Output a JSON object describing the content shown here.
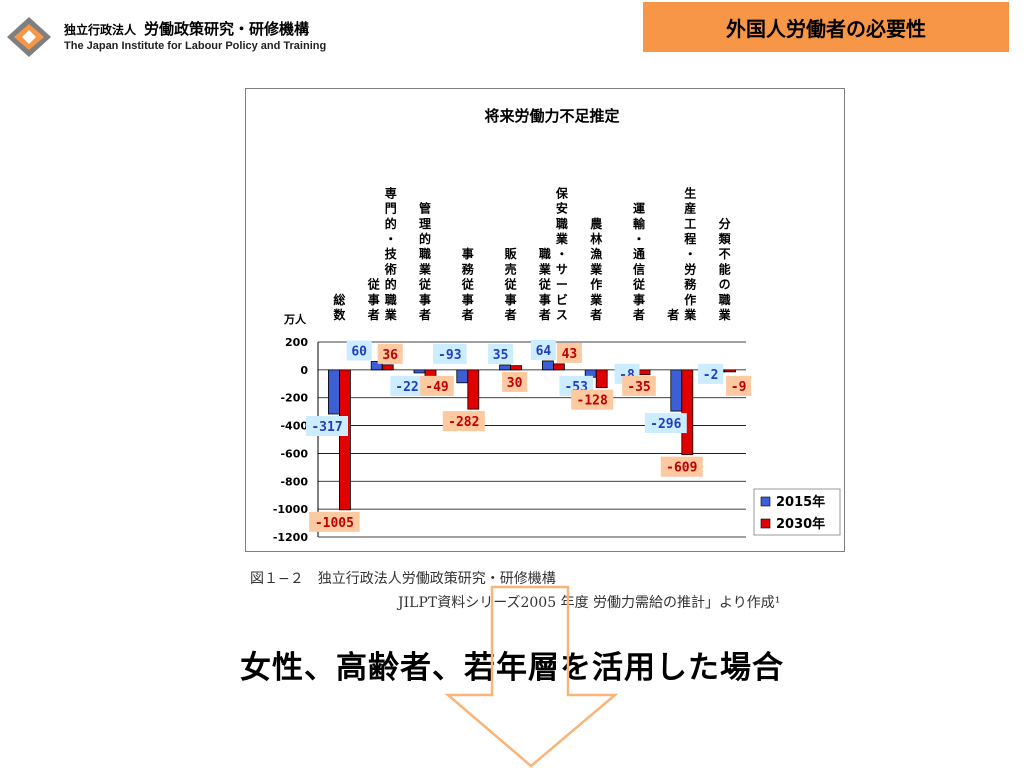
{
  "header": {
    "org_small": "独立行政法人",
    "org_name": "労働政策研究・研修機構",
    "org_en": "The Japan Institute for Labour Policy and Training",
    "slide_title": "外国人労働者の必要性"
  },
  "colors": {
    "title_box": "#f79646",
    "series_2015": "#3c5fd6",
    "series_2030": "#e00000",
    "label_2015_bg": "#ccecff",
    "label_2030_bg": "#fcc9a0",
    "arrow": "#f9b479",
    "logo": "#7f7f7f"
  },
  "chart_data": {
    "type": "bar",
    "title": "将来労働力不足推定",
    "yunit": "万人",
    "ylim": [
      -1200,
      200
    ],
    "yticks": [
      200,
      0,
      -200,
      -400,
      -600,
      -800,
      -1000,
      -1200
    ],
    "grid": true,
    "legend_position": "right-bottom",
    "categories": [
      [
        "総",
        "数"
      ],
      [
        "専",
        "門",
        "的",
        "・",
        "技",
        "術",
        "的",
        "職",
        "業",
        "従",
        "事",
        "者"
      ],
      [
        "管",
        "理",
        "的",
        "職",
        "業",
        "従",
        "事",
        "者"
      ],
      [
        "事",
        "務",
        "従",
        "事",
        "者"
      ],
      [
        "販",
        "売",
        "従",
        "事",
        "者"
      ],
      [
        "保",
        "安",
        "職",
        "業",
        "・",
        "サ",
        "ー",
        "ビ",
        "ス",
        "職",
        "業",
        "従",
        "事",
        "者"
      ],
      [
        "農",
        "林",
        "漁",
        "業",
        "作",
        "業",
        "者"
      ],
      [
        "運",
        "輸",
        "・",
        "通",
        "信",
        "従",
        "事",
        "者"
      ],
      [
        "生",
        "産",
        "工",
        "程",
        "・",
        "労",
        "務",
        "作",
        "業",
        "者"
      ],
      [
        "分",
        "類",
        "不",
        "能",
        "の",
        "職",
        "業"
      ]
    ],
    "series": [
      {
        "name": "2015年",
        "values": [
          -317,
          60,
          -22,
          -93,
          35,
          64,
          -53,
          -8,
          -296,
          -2
        ]
      },
      {
        "name": "2030年",
        "values": [
          -1005,
          36,
          -49,
          -282,
          30,
          43,
          -128,
          -35,
          -609,
          -9
        ]
      }
    ]
  },
  "captions": {
    "line1": "図１−２　独立行政法人労働政策研究・研修機構",
    "line2": "JILPT資料シリーズ2005 年度 労働力需給の推計」より作成¹"
  },
  "headline": "女性、高齢者、若年層を活用した場合"
}
